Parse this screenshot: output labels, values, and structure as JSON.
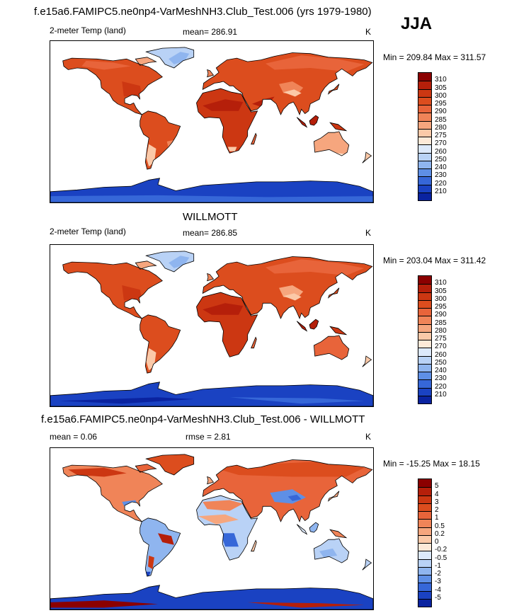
{
  "header": {
    "title": "f.e15a6.FAMIPC5.ne0np4-VarMeshNH3.Club_Test.006 (yrs 1979-1980)",
    "season": "JJA"
  },
  "panel1": {
    "variable": "2-meter Temp (land)",
    "mean": "mean= 286.91",
    "units": "K",
    "minmax": "Min = 209.84 Max = 311.57"
  },
  "panel2": {
    "title": "WILLMOTT",
    "variable": "2-meter Temp (land)",
    "mean": "mean= 286.85",
    "units": "K",
    "minmax": "Min = 203.04 Max = 311.42"
  },
  "panel3": {
    "title": "f.e15a6.FAMIPC5.ne0np4-VarMeshNH3.Club_Test.006 - WILLMOTT",
    "mean": "mean =   0.06",
    "rmse": "rmse =   2.81",
    "units": "K",
    "minmax": "Min = -15.25 Max =  18.15"
  },
  "colorbars": {
    "temp": {
      "labels": [
        "310",
        "305",
        "300",
        "295",
        "290",
        "285",
        "280",
        "275",
        "270",
        "260",
        "250",
        "240",
        "230",
        "220",
        "210"
      ],
      "colors": [
        "#8b0000",
        "#b51f0a",
        "#cc3712",
        "#dc4d1e",
        "#e8643a",
        "#f08458",
        "#f6a67e",
        "#fbc9a8",
        "#fde9d8",
        "#dde9fb",
        "#b9d2f6",
        "#8fb5ef",
        "#5e8fe6",
        "#3667d8",
        "#1a42c2",
        "#0a23a0"
      ]
    },
    "diff": {
      "labels": [
        "5",
        "4",
        "3",
        "2",
        "1",
        "0.5",
        "0.2",
        "0",
        "-0.2",
        "-0.5",
        "-1",
        "-2",
        "-3",
        "-4",
        "-5"
      ],
      "colors": [
        "#8b0000",
        "#b51f0a",
        "#cc3712",
        "#dc4d1e",
        "#e8643a",
        "#f08458",
        "#f6a67e",
        "#fbc9a8",
        "#fde9d8",
        "#dde9fb",
        "#b9d2f6",
        "#8fb5ef",
        "#5e8fe6",
        "#3667d8",
        "#1a42c2",
        "#0a23a0"
      ]
    }
  },
  "chart_data": [
    {
      "type": "heatmap",
      "title": "f.e15a6.FAMIPC5.ne0np4-VarMeshNH3.Club_Test.006 (yrs 1979-1980)",
      "variable": "2-meter Temp (land)",
      "season": "JJA",
      "units": "K",
      "mean": 286.91,
      "min": 209.84,
      "max": 311.57,
      "contour_levels": [
        210,
        220,
        230,
        240,
        250,
        260,
        270,
        275,
        280,
        285,
        290,
        295,
        300,
        305,
        310
      ]
    },
    {
      "type": "heatmap",
      "title": "WILLMOTT",
      "variable": "2-meter Temp (land)",
      "season": "JJA",
      "units": "K",
      "mean": 286.85,
      "min": 203.04,
      "max": 311.42,
      "contour_levels": [
        210,
        220,
        230,
        240,
        250,
        260,
        270,
        275,
        280,
        285,
        290,
        295,
        300,
        305,
        310
      ]
    },
    {
      "type": "heatmap",
      "title": "f.e15a6.FAMIPC5.ne0np4-VarMeshNH3.Club_Test.006 - WILLMOTT",
      "units": "K",
      "mean": 0.06,
      "rmse": 2.81,
      "min": -15.25,
      "max": 18.15,
      "contour_levels": [
        -5,
        -4,
        -3,
        -2,
        -1,
        -0.5,
        -0.2,
        0,
        0.2,
        0.5,
        1,
        2,
        3,
        4,
        5
      ]
    }
  ]
}
